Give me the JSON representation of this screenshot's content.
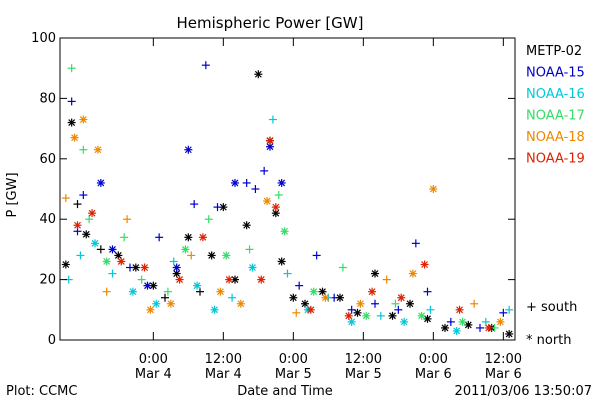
{
  "chart_data": {
    "type": "scatter",
    "title": "Hemispheric Power [GW]",
    "ylabel": "P [GW]",
    "xlabel": "Date and Time",
    "ylim": [
      0,
      100
    ],
    "yticks": [
      0,
      20,
      40,
      60,
      80,
      100
    ],
    "xlim": [
      "2011-03-03T08:00",
      "2011-03-06T14:00"
    ],
    "xticks": [
      {
        "time": "2011-03-04T00:00",
        "label1": "0:00",
        "label2": "Mar 4"
      },
      {
        "time": "2011-03-04T12:00",
        "label1": "12:00",
        "label2": "Mar 4"
      },
      {
        "time": "2011-03-05T00:00",
        "label1": "0:00",
        "label2": "Mar 5"
      },
      {
        "time": "2011-03-05T12:00",
        "label1": "12:00",
        "label2": "Mar 5"
      },
      {
        "time": "2011-03-06T00:00",
        "label1": "0:00",
        "label2": "Mar 6"
      },
      {
        "time": "2011-03-06T12:00",
        "label1": "12:00",
        "label2": "Mar 6"
      }
    ],
    "marker_legend": {
      "south": "+ south",
      "north": "* north"
    },
    "series": [
      {
        "name": "METP-02",
        "color": "#000000",
        "points": [
          {
            "t": "2011-03-03T09:00",
            "y": 25,
            "m": "north"
          },
          {
            "t": "2011-03-03T10:00",
            "y": 72,
            "m": "north"
          },
          {
            "t": "2011-03-03T11:00",
            "y": 45,
            "m": "south"
          },
          {
            "t": "2011-03-03T12:30",
            "y": 35,
            "m": "north"
          },
          {
            "t": "2011-03-03T15:00",
            "y": 30,
            "m": "south"
          },
          {
            "t": "2011-03-03T18:00",
            "y": 28,
            "m": "north"
          },
          {
            "t": "2011-03-03T21:00",
            "y": 24,
            "m": "north"
          },
          {
            "t": "2011-03-04T00:00",
            "y": 18,
            "m": "north"
          },
          {
            "t": "2011-03-04T02:00",
            "y": 14,
            "m": "south"
          },
          {
            "t": "2011-03-04T04:00",
            "y": 22,
            "m": "north"
          },
          {
            "t": "2011-03-04T06:00",
            "y": 34,
            "m": "north"
          },
          {
            "t": "2011-03-04T08:00",
            "y": 16,
            "m": "south"
          },
          {
            "t": "2011-03-04T10:00",
            "y": 28,
            "m": "north"
          },
          {
            "t": "2011-03-04T12:00",
            "y": 44,
            "m": "north"
          },
          {
            "t": "2011-03-04T14:00",
            "y": 20,
            "m": "north"
          },
          {
            "t": "2011-03-04T16:00",
            "y": 38,
            "m": "north"
          },
          {
            "t": "2011-03-04T18:00",
            "y": 88,
            "m": "north"
          },
          {
            "t": "2011-03-04T20:00",
            "y": 66,
            "m": "north"
          },
          {
            "t": "2011-03-04T21:00",
            "y": 42,
            "m": "north"
          },
          {
            "t": "2011-03-04T22:00",
            "y": 26,
            "m": "north"
          },
          {
            "t": "2011-03-05T00:00",
            "y": 14,
            "m": "north"
          },
          {
            "t": "2011-03-05T02:00",
            "y": 12,
            "m": "north"
          },
          {
            "t": "2011-03-05T05:00",
            "y": 16,
            "m": "north"
          },
          {
            "t": "2011-03-05T08:00",
            "y": 14,
            "m": "north"
          },
          {
            "t": "2011-03-05T11:00",
            "y": 9,
            "m": "north"
          },
          {
            "t": "2011-03-05T14:00",
            "y": 22,
            "m": "north"
          },
          {
            "t": "2011-03-05T17:00",
            "y": 8,
            "m": "north"
          },
          {
            "t": "2011-03-05T20:00",
            "y": 12,
            "m": "north"
          },
          {
            "t": "2011-03-05T23:00",
            "y": 7,
            "m": "north"
          },
          {
            "t": "2011-03-06T02:00",
            "y": 4,
            "m": "north"
          },
          {
            "t": "2011-03-06T06:00",
            "y": 5,
            "m": "north"
          },
          {
            "t": "2011-03-06T10:00",
            "y": 4,
            "m": "north"
          },
          {
            "t": "2011-03-06T13:00",
            "y": 2,
            "m": "north"
          }
        ]
      },
      {
        "name": "NOAA-15",
        "color": "#0000cc",
        "points": [
          {
            "t": "2011-03-03T10:00",
            "y": 79,
            "m": "south"
          },
          {
            "t": "2011-03-03T11:00",
            "y": 36,
            "m": "south"
          },
          {
            "t": "2011-03-03T12:00",
            "y": 48,
            "m": "south"
          },
          {
            "t": "2011-03-03T15:00",
            "y": 52,
            "m": "north"
          },
          {
            "t": "2011-03-03T17:00",
            "y": 30,
            "m": "north"
          },
          {
            "t": "2011-03-03T20:00",
            "y": 24,
            "m": "south"
          },
          {
            "t": "2011-03-03T23:00",
            "y": 18,
            "m": "north"
          },
          {
            "t": "2011-03-04T01:00",
            "y": 34,
            "m": "south"
          },
          {
            "t": "2011-03-04T04:00",
            "y": 24,
            "m": "north"
          },
          {
            "t": "2011-03-04T06:00",
            "y": 63,
            "m": "north"
          },
          {
            "t": "2011-03-04T07:00",
            "y": 45,
            "m": "south"
          },
          {
            "t": "2011-03-04T09:00",
            "y": 91,
            "m": "south"
          },
          {
            "t": "2011-03-04T11:00",
            "y": 44,
            "m": "south"
          },
          {
            "t": "2011-03-04T14:00",
            "y": 52,
            "m": "north"
          },
          {
            "t": "2011-03-04T16:00",
            "y": 52,
            "m": "south"
          },
          {
            "t": "2011-03-04T17:30",
            "y": 50,
            "m": "south"
          },
          {
            "t": "2011-03-04T19:00",
            "y": 56,
            "m": "south"
          },
          {
            "t": "2011-03-04T20:00",
            "y": 64,
            "m": "north"
          },
          {
            "t": "2011-03-04T22:00",
            "y": 52,
            "m": "north"
          },
          {
            "t": "2011-03-05T01:00",
            "y": 18,
            "m": "south"
          },
          {
            "t": "2011-03-05T04:00",
            "y": 28,
            "m": "south"
          },
          {
            "t": "2011-03-05T07:00",
            "y": 14,
            "m": "south"
          },
          {
            "t": "2011-03-05T10:00",
            "y": 10,
            "m": "south"
          },
          {
            "t": "2011-03-05T14:00",
            "y": 12,
            "m": "south"
          },
          {
            "t": "2011-03-05T18:00",
            "y": 10,
            "m": "south"
          },
          {
            "t": "2011-03-05T21:00",
            "y": 32,
            "m": "south"
          },
          {
            "t": "2011-03-05T23:00",
            "y": 16,
            "m": "south"
          },
          {
            "t": "2011-03-06T03:00",
            "y": 6,
            "m": "south"
          },
          {
            "t": "2011-03-06T08:00",
            "y": 4,
            "m": "south"
          },
          {
            "t": "2011-03-06T12:00",
            "y": 9,
            "m": "south"
          }
        ]
      },
      {
        "name": "NOAA-16",
        "color": "#00c8d8",
        "points": [
          {
            "t": "2011-03-03T09:30",
            "y": 20,
            "m": "south"
          },
          {
            "t": "2011-03-03T11:30",
            "y": 28,
            "m": "south"
          },
          {
            "t": "2011-03-03T14:00",
            "y": 32,
            "m": "north"
          },
          {
            "t": "2011-03-03T17:00",
            "y": 22,
            "m": "south"
          },
          {
            "t": "2011-03-03T20:30",
            "y": 16,
            "m": "north"
          },
          {
            "t": "2011-03-04T00:30",
            "y": 12,
            "m": "north"
          },
          {
            "t": "2011-03-04T03:30",
            "y": 26,
            "m": "south"
          },
          {
            "t": "2011-03-04T07:30",
            "y": 18,
            "m": "north"
          },
          {
            "t": "2011-03-04T10:30",
            "y": 10,
            "m": "north"
          },
          {
            "t": "2011-03-04T13:30",
            "y": 14,
            "m": "south"
          },
          {
            "t": "2011-03-04T17:00",
            "y": 24,
            "m": "north"
          },
          {
            "t": "2011-03-04T20:30",
            "y": 73,
            "m": "south"
          },
          {
            "t": "2011-03-04T23:00",
            "y": 22,
            "m": "south"
          },
          {
            "t": "2011-03-05T02:30",
            "y": 10,
            "m": "north"
          },
          {
            "t": "2011-03-05T06:00",
            "y": 14,
            "m": "south"
          },
          {
            "t": "2011-03-05T10:00",
            "y": 6,
            "m": "north"
          },
          {
            "t": "2011-03-05T15:00",
            "y": 8,
            "m": "south"
          },
          {
            "t": "2011-03-05T19:00",
            "y": 6,
            "m": "north"
          },
          {
            "t": "2011-03-05T23:30",
            "y": 10,
            "m": "south"
          },
          {
            "t": "2011-03-06T04:00",
            "y": 3,
            "m": "north"
          },
          {
            "t": "2011-03-06T09:00",
            "y": 6,
            "m": "south"
          },
          {
            "t": "2011-03-06T13:00",
            "y": 10,
            "m": "south"
          }
        ]
      },
      {
        "name": "NOAA-17",
        "color": "#33dd66",
        "points": [
          {
            "t": "2011-03-03T10:00",
            "y": 90,
            "m": "south"
          },
          {
            "t": "2011-03-03T12:00",
            "y": 63,
            "m": "south"
          },
          {
            "t": "2011-03-03T13:00",
            "y": 40,
            "m": "south"
          },
          {
            "t": "2011-03-03T16:00",
            "y": 26,
            "m": "north"
          },
          {
            "t": "2011-03-03T19:00",
            "y": 34,
            "m": "south"
          },
          {
            "t": "2011-03-03T22:00",
            "y": 20,
            "m": "south"
          },
          {
            "t": "2011-03-04T02:30",
            "y": 16,
            "m": "south"
          },
          {
            "t": "2011-03-04T05:30",
            "y": 30,
            "m": "north"
          },
          {
            "t": "2011-03-04T09:30",
            "y": 40,
            "m": "south"
          },
          {
            "t": "2011-03-04T12:30",
            "y": 28,
            "m": "north"
          },
          {
            "t": "2011-03-04T16:30",
            "y": 30,
            "m": "south"
          },
          {
            "t": "2011-03-04T21:30",
            "y": 48,
            "m": "south"
          },
          {
            "t": "2011-03-04T22:30",
            "y": 36,
            "m": "north"
          },
          {
            "t": "2011-03-05T03:30",
            "y": 16,
            "m": "north"
          },
          {
            "t": "2011-03-05T08:30",
            "y": 24,
            "m": "south"
          },
          {
            "t": "2011-03-05T12:30",
            "y": 8,
            "m": "north"
          },
          {
            "t": "2011-03-05T17:30",
            "y": 12,
            "m": "south"
          },
          {
            "t": "2011-03-05T22:00",
            "y": 8,
            "m": "north"
          },
          {
            "t": "2011-03-06T05:00",
            "y": 6,
            "m": "north"
          },
          {
            "t": "2011-03-06T10:30",
            "y": 4,
            "m": "south"
          }
        ]
      },
      {
        "name": "NOAA-18",
        "color": "#ee8800",
        "points": [
          {
            "t": "2011-03-03T09:00",
            "y": 47,
            "m": "south"
          },
          {
            "t": "2011-03-03T10:30",
            "y": 67,
            "m": "north"
          },
          {
            "t": "2011-03-03T12:00",
            "y": 73,
            "m": "north"
          },
          {
            "t": "2011-03-03T14:30",
            "y": 63,
            "m": "north"
          },
          {
            "t": "2011-03-03T16:00",
            "y": 16,
            "m": "south"
          },
          {
            "t": "2011-03-03T19:30",
            "y": 40,
            "m": "south"
          },
          {
            "t": "2011-03-03T23:30",
            "y": 10,
            "m": "north"
          },
          {
            "t": "2011-03-04T03:00",
            "y": 12,
            "m": "north"
          },
          {
            "t": "2011-03-04T06:30",
            "y": 28,
            "m": "south"
          },
          {
            "t": "2011-03-04T11:30",
            "y": 16,
            "m": "north"
          },
          {
            "t": "2011-03-04T15:00",
            "y": 12,
            "m": "north"
          },
          {
            "t": "2011-03-04T19:30",
            "y": 46,
            "m": "north"
          },
          {
            "t": "2011-03-05T00:30",
            "y": 9,
            "m": "south"
          },
          {
            "t": "2011-03-05T05:30",
            "y": 14,
            "m": "north"
          },
          {
            "t": "2011-03-05T11:30",
            "y": 12,
            "m": "north"
          },
          {
            "t": "2011-03-05T16:00",
            "y": 20,
            "m": "south"
          },
          {
            "t": "2011-03-05T20:30",
            "y": 22,
            "m": "north"
          },
          {
            "t": "2011-03-06T00:00",
            "y": 50,
            "m": "north"
          },
          {
            "t": "2011-03-06T07:00",
            "y": 12,
            "m": "south"
          },
          {
            "t": "2011-03-06T11:30",
            "y": 6,
            "m": "north"
          }
        ]
      },
      {
        "name": "NOAA-19",
        "color": "#dd2200",
        "points": [
          {
            "t": "2011-03-03T11:00",
            "y": 38,
            "m": "north"
          },
          {
            "t": "2011-03-03T13:30",
            "y": 42,
            "m": "north"
          },
          {
            "t": "2011-03-03T18:30",
            "y": 26,
            "m": "north"
          },
          {
            "t": "2011-03-03T22:30",
            "y": 24,
            "m": "north"
          },
          {
            "t": "2011-03-04T04:30",
            "y": 20,
            "m": "north"
          },
          {
            "t": "2011-03-04T08:30",
            "y": 34,
            "m": "north"
          },
          {
            "t": "2011-03-04T13:00",
            "y": 20,
            "m": "north"
          },
          {
            "t": "2011-03-04T18:30",
            "y": 20,
            "m": "north"
          },
          {
            "t": "2011-03-04T20:00",
            "y": 66,
            "m": "north"
          },
          {
            "t": "2011-03-04T21:00",
            "y": 44,
            "m": "north"
          },
          {
            "t": "2011-03-05T03:00",
            "y": 10,
            "m": "north"
          },
          {
            "t": "2011-03-05T09:30",
            "y": 8,
            "m": "north"
          },
          {
            "t": "2011-03-05T13:30",
            "y": 16,
            "m": "north"
          },
          {
            "t": "2011-03-05T18:30",
            "y": 14,
            "m": "north"
          },
          {
            "t": "2011-03-05T22:30",
            "y": 25,
            "m": "north"
          },
          {
            "t": "2011-03-06T04:30",
            "y": 10,
            "m": "north"
          },
          {
            "t": "2011-03-06T09:30",
            "y": 4,
            "m": "north"
          }
        ]
      }
    ]
  },
  "footer": {
    "plot_label": "Plot: CCMC",
    "timestamp": "2011/03/06  13:50:07"
  }
}
